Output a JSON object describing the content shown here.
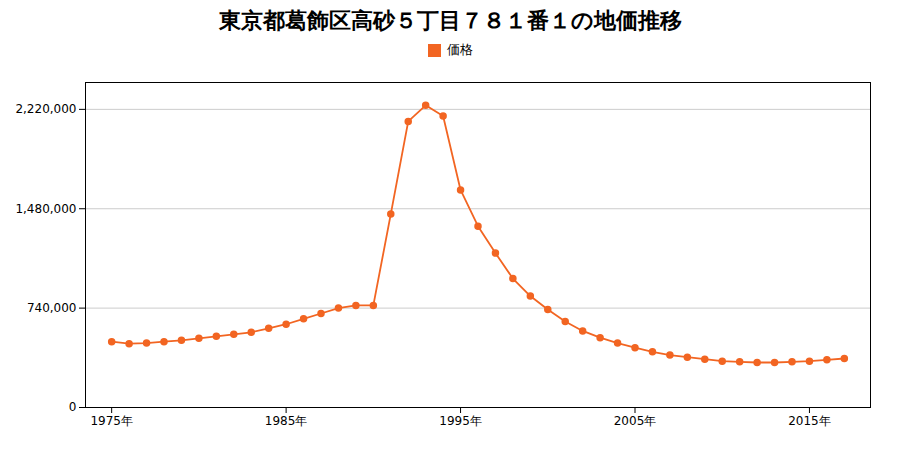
{
  "chart_data": {
    "type": "line",
    "title": "東京都葛飾区高砂５丁目７８１番１の地価推移",
    "x": [
      1975,
      1976,
      1977,
      1978,
      1979,
      1980,
      1981,
      1982,
      1983,
      1984,
      1985,
      1986,
      1987,
      1988,
      1989,
      1990,
      1991,
      1992,
      1993,
      1994,
      1995,
      1996,
      1997,
      1998,
      1999,
      2000,
      2001,
      2002,
      2003,
      2004,
      2005,
      2006,
      2007,
      2008,
      2009,
      2010,
      2011,
      2012,
      2013,
      2014,
      2015,
      2016,
      2017
    ],
    "series": [
      {
        "name": "価格",
        "color": "#f26522",
        "marker": "circle",
        "values": [
          490000,
          475000,
          480000,
          490000,
          500000,
          515000,
          530000,
          545000,
          560000,
          590000,
          620000,
          660000,
          700000,
          740000,
          760000,
          760000,
          1440000,
          2130000,
          2250000,
          2170000,
          1620000,
          1350000,
          1150000,
          960000,
          830000,
          730000,
          640000,
          570000,
          520000,
          480000,
          445000,
          415000,
          390000,
          375000,
          360000,
          345000,
          340000,
          335000,
          335000,
          340000,
          345000,
          355000,
          365000
        ]
      }
    ],
    "xlim": [
      1973.5,
      2018.5
    ],
    "xticks": [
      {
        "value": 1975,
        "label": "1975年"
      },
      {
        "value": 1985,
        "label": "1985年"
      },
      {
        "value": 1995,
        "label": "1995年"
      },
      {
        "value": 2005,
        "label": "2005年"
      },
      {
        "value": 2015,
        "label": "2015年"
      }
    ],
    "ylim": [
      0,
      2420000
    ],
    "yticks": [
      0,
      {
        "value": 740000,
        "label": "740,000"
      },
      {
        "value": 1480000,
        "label": "1,480,000"
      },
      {
        "value": 2220000,
        "label": "2,220,000"
      }
    ],
    "grid": true,
    "legend": "top"
  }
}
